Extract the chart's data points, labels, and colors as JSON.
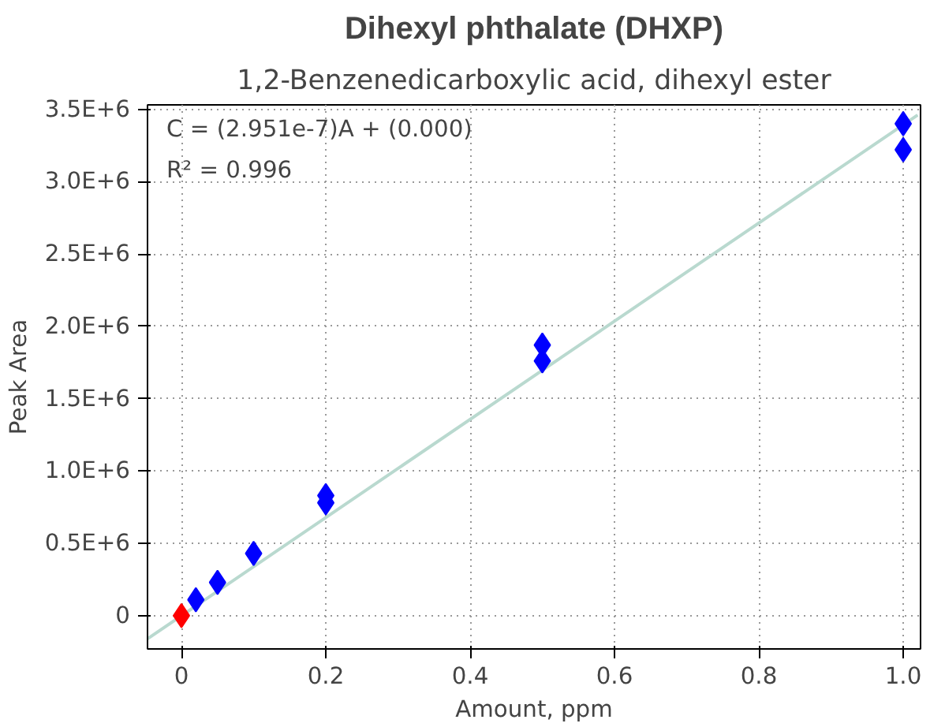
{
  "chart_data": {
    "type": "scatter",
    "title": "Dihexyl phthalate (DHXP)",
    "subtitle": "1,2-Benzenedicarboxylic acid, dihexyl ester",
    "xlabel": "Amount, ppm",
    "ylabel": "Peak Area",
    "annotations": [
      "C = (2.951e-7)A + (0.000)",
      "R² = 0.996"
    ],
    "xlim": [
      -0.047,
      1.024
    ],
    "ylim": [
      -230000,
      3530000
    ],
    "xticks": [
      0,
      0.2,
      0.4,
      0.6,
      0.8,
      {
        "value": 1,
        "label": "1.0"
      }
    ],
    "yticks": [
      0,
      {
        "value": 500000,
        "label": "0.5E+6"
      },
      {
        "value": 1000000,
        "label": "1.0E+6"
      },
      {
        "value": 1500000,
        "label": "1.5E+6"
      },
      {
        "value": 2000000,
        "label": "2.0E+6"
      },
      {
        "value": 2500000,
        "label": "2.5E+6"
      },
      {
        "value": 3000000,
        "label": "3.0E+6"
      },
      {
        "value": 3500000,
        "label": "3.5E+6"
      }
    ],
    "grid": true,
    "marker": "diamond",
    "series": [
      {
        "type": "line",
        "marker": "none",
        "color": "#b9d9cf",
        "x": [
          -0.047,
          1.02
        ],
        "values": [
          -160000,
          3460000
        ]
      },
      {
        "color": "#0000ff",
        "x": [
          0.02,
          0.05,
          0.1,
          0.2,
          0.2,
          0.5,
          0.5,
          1.0,
          1.0
        ],
        "values": [
          110000,
          230000,
          430000,
          780000,
          830000,
          1760000,
          1870000,
          3220000,
          3400000
        ]
      },
      {
        "color": "#ff0000",
        "x": [
          0
        ],
        "values": [
          0
        ]
      }
    ]
  }
}
